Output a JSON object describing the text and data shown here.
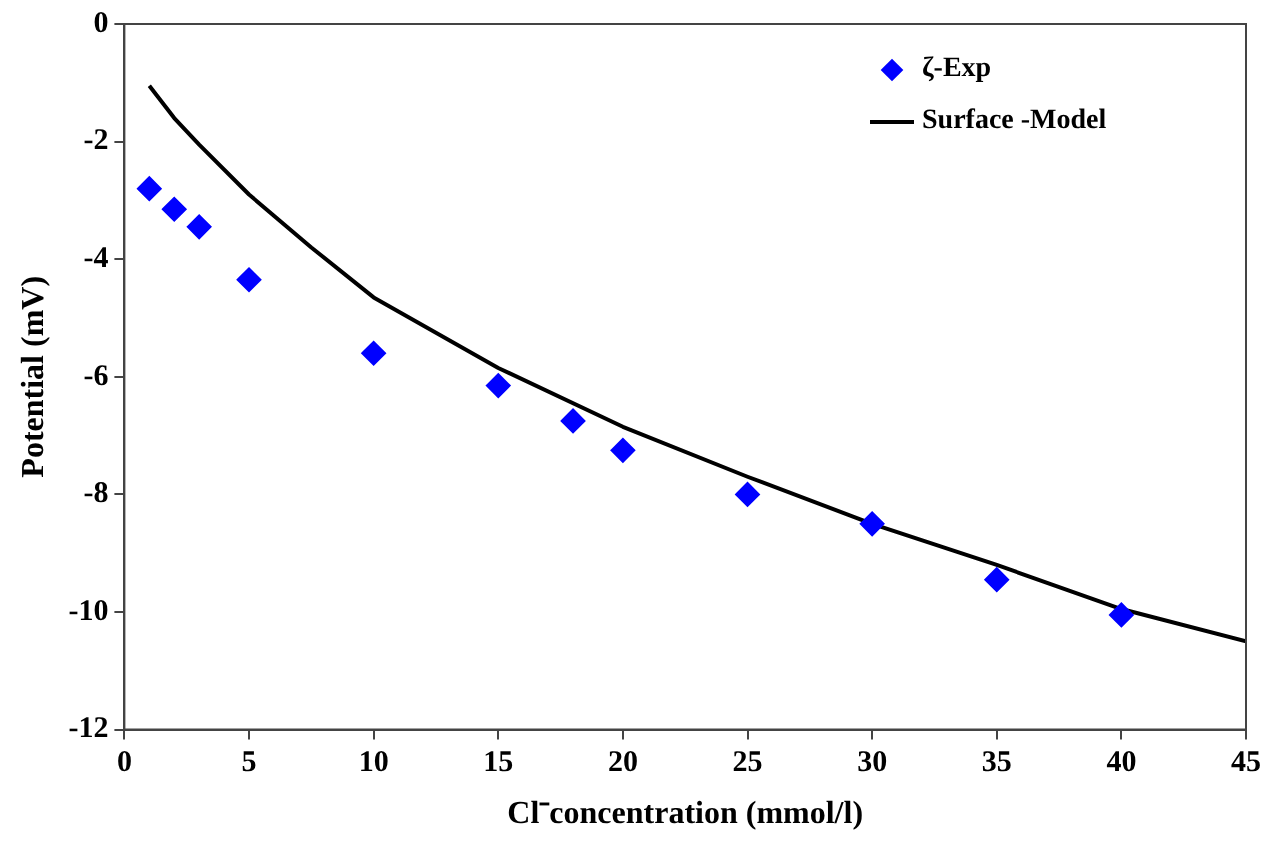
{
  "chart_data": {
    "type": "scatter",
    "xlabel": "Cl⁻concentration (mmol/l)",
    "ylabel": "Potential (mV)",
    "x": [
      1,
      2,
      3,
      5,
      10,
      15,
      18,
      20,
      25,
      30,
      35,
      40
    ],
    "series": [
      {
        "name": "ζ-Exp",
        "type": "scatter",
        "color": "#0000ff",
        "marker": "diamond",
        "values": [
          -2.8,
          -3.15,
          -3.45,
          -4.35,
          -5.6,
          -6.15,
          -6.75,
          -7.25,
          -8.0,
          -8.5,
          -9.45,
          -10.05
        ]
      },
      {
        "name": "Surface -Model",
        "type": "line",
        "color": "#000000",
        "marker": "none",
        "line_style": "solid",
        "x": [
          1,
          2,
          3,
          5,
          7.5,
          10,
          15,
          20,
          25,
          30,
          35,
          40,
          45
        ],
        "values": [
          -1.05,
          -1.6,
          -2.05,
          -2.9,
          -3.8,
          -4.65,
          -5.85,
          -6.85,
          -7.7,
          -8.5,
          -9.2,
          -9.95,
          -10.5
        ]
      }
    ],
    "xlim": [
      0,
      45
    ],
    "xticks": [
      0,
      5,
      10,
      15,
      20,
      25,
      30,
      35,
      40,
      45
    ],
    "ylim": [
      -12,
      0
    ],
    "yticks": [
      -12,
      -10,
      -8,
      -6,
      -4,
      -2,
      0
    ],
    "grid": false,
    "legend": "top right"
  }
}
